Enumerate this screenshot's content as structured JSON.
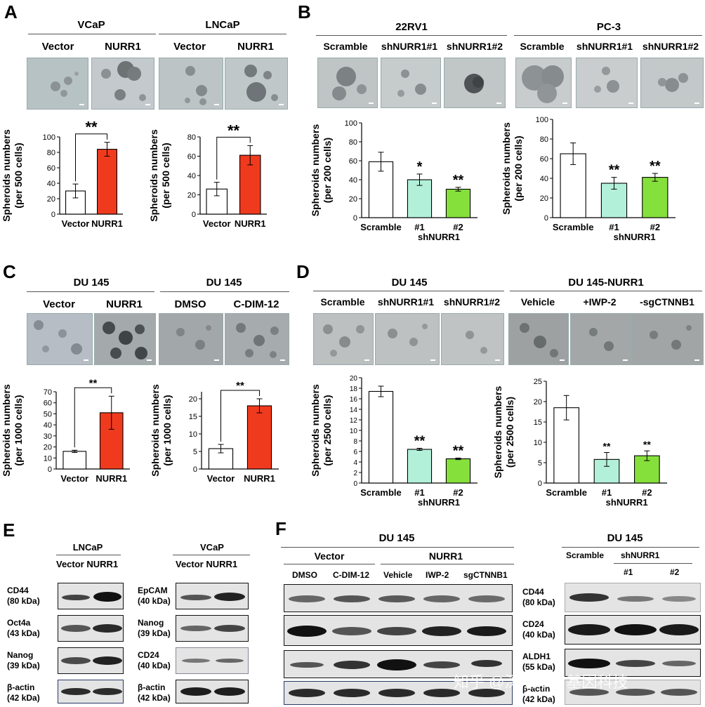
{
  "panels": {
    "A": {
      "letter": "A",
      "cell_lines": [
        "VCaP",
        "LNCaP"
      ],
      "conditions": [
        "Vector",
        "NURR1",
        "Vector",
        "NURR1"
      ]
    },
    "B": {
      "letter": "B",
      "cell_lines": [
        "22RV1",
        "PC-3"
      ],
      "conditions": [
        "Scramble",
        "shNURR1#1",
        "shNURR1#2",
        "Scramble",
        "shNURR1#1",
        "shNURR1#2"
      ]
    },
    "C": {
      "letter": "C",
      "cell_lines": [
        "DU 145",
        "DU 145"
      ],
      "conditions": [
        "Vector",
        "NURR1",
        "DMSO",
        "C-DIM-12"
      ]
    },
    "D": {
      "letter": "D",
      "cell_lines": [
        "DU 145",
        "DU 145-NURR1"
      ],
      "conditions": [
        "Scramble",
        "shNURR1#1",
        "shNURR1#2",
        "Vehicle",
        "+IWP-2",
        "-sgCTNNB1"
      ]
    },
    "E": {
      "letter": "E",
      "cell_lines": [
        "LNCaP",
        "VCaP"
      ],
      "lanes": "Vector NURR1",
      "left_bands": [
        "CD44\n(80 kDa)",
        "Oct4a\n(43 kDa)",
        "Nanog\n(39 kDa)",
        "β-actin\n(42 kDa)"
      ],
      "right_bands": [
        "EpCAM\n(40 kDa)",
        "Nanog\n(39 kDa)",
        "CD24\n(40 kDa)",
        "β-actin\n(42 kDa)"
      ]
    },
    "F": {
      "letter": "F",
      "title_left": "DU 145",
      "group_vector": "Vector",
      "group_nurr1": "NURR1",
      "lanes_left": [
        "DMSO",
        "C-DIM-12",
        "Vehicle",
        "IWP-2",
        "sgCTNNB1"
      ],
      "title_right": "DU 145",
      "lane_scramble": "Scramble",
      "group_sh": "shNURR1",
      "lanes_right_sub": [
        "#1",
        "#2"
      ],
      "bands": [
        "CD44\n(80 kDa)",
        "CD24\n(40 kDa)",
        "ALDH1\n(55 kDa)",
        "β-actin\n(42 kDa)"
      ]
    }
  },
  "watermark": "知乎 @深圳市易基因科技",
  "chart_data": [
    {
      "type": "bar",
      "panel": "A",
      "ylabel": "Spheroids numbers\n(per 500 cells)",
      "categories": [
        "Vector",
        "NURR1"
      ],
      "values": [
        30,
        84
      ],
      "errors": [
        9,
        9
      ],
      "ylim": [
        0,
        100
      ],
      "yticks": [
        0,
        20,
        40,
        60,
        80,
        100
      ],
      "significance": "**",
      "colors": [
        "#ffffff",
        "#f03a1e"
      ]
    },
    {
      "type": "bar",
      "panel": "A",
      "ylabel": "Spheroids numbers\n(per 500 cells)",
      "categories": [
        "Vector",
        "NURR1"
      ],
      "values": [
        26,
        61
      ],
      "errors": [
        7,
        10
      ],
      "ylim": [
        0,
        80
      ],
      "yticks": [
        0,
        20,
        40,
        60,
        80
      ],
      "significance": "**",
      "colors": [
        "#ffffff",
        "#f03a1e"
      ]
    },
    {
      "type": "bar",
      "panel": "B",
      "ylabel": "Spheroids numbers\n(per 200 cells)",
      "categories": [
        "Scramble",
        "#1",
        "#2"
      ],
      "group_label": "shNURR1",
      "values": [
        59,
        40,
        30
      ],
      "errors": [
        10,
        6,
        2
      ],
      "ylim": [
        0,
        100
      ],
      "yticks": [
        0,
        20,
        40,
        60,
        80,
        100
      ],
      "significance": [
        "",
        "*",
        "**"
      ],
      "colors": [
        "#ffffff",
        "#b3f0da",
        "#86e03c"
      ]
    },
    {
      "type": "bar",
      "panel": "B",
      "ylabel": "Spheroids numbers\n(per 200 cells)",
      "categories": [
        "Scramble",
        "#1",
        "#2"
      ],
      "group_label": "shNURR1",
      "values": [
        65,
        35,
        41
      ],
      "errors": [
        11,
        6,
        4
      ],
      "ylim": [
        0,
        100
      ],
      "yticks": [
        0,
        20,
        40,
        60,
        80,
        100
      ],
      "significance": [
        "",
        "**",
        "**"
      ],
      "colors": [
        "#ffffff",
        "#b3f0da",
        "#86e03c"
      ]
    },
    {
      "type": "bar",
      "panel": "C",
      "ylabel": "Spheroids numbers\n(per 1000 cells)",
      "categories": [
        "Vector",
        "NURR1"
      ],
      "values": [
        16,
        51
      ],
      "errors": [
        1,
        15
      ],
      "ylim": [
        0,
        70
      ],
      "yticks": [
        0,
        10,
        20,
        30,
        40,
        50,
        60,
        70
      ],
      "significance": "**",
      "colors": [
        "#ffffff",
        "#f03a1e"
      ]
    },
    {
      "type": "bar",
      "panel": "C",
      "ylabel": "Spheroids numbers\n(per 1000 cells)",
      "categories": [
        "Vector",
        "NURR1"
      ],
      "values": [
        5.8,
        18
      ],
      "errors": [
        1.2,
        2
      ],
      "ylim": [
        0,
        22
      ],
      "yticks": [
        0,
        5,
        10,
        15,
        20
      ],
      "significance": "**",
      "colors": [
        "#ffffff",
        "#f03a1e"
      ]
    },
    {
      "type": "bar",
      "panel": "D",
      "ylabel": "Spheroids numbers\n(per 2500 cells)",
      "categories": [
        "Scramble",
        "#1",
        "#2"
      ],
      "group_label": "shNURR1",
      "values": [
        17.4,
        6.4,
        4.6
      ],
      "errors": [
        1,
        0.2,
        0.15
      ],
      "ylim": [
        0,
        20
      ],
      "yticks": [
        0,
        2,
        4,
        6,
        8,
        10,
        12,
        14,
        16,
        18,
        20
      ],
      "significance": [
        "",
        "**",
        "**"
      ],
      "colors": [
        "#ffffff",
        "#b3f0da",
        "#86e03c"
      ]
    },
    {
      "type": "bar",
      "panel": "D",
      "ylabel": "Spheroids numbers\n(per 2500 cells)",
      "categories": [
        "Scramble",
        "#1",
        "#2"
      ],
      "group_label": "shNURR1",
      "values": [
        18.5,
        5.8,
        6.7
      ],
      "errors": [
        3,
        1.7,
        1.2
      ],
      "ylim": [
        0,
        25
      ],
      "yticks": [
        0,
        5,
        10,
        15,
        20,
        25
      ],
      "significance": [
        "",
        "**",
        "**"
      ],
      "colors": [
        "#ffffff",
        "#b3f0da",
        "#86e03c"
      ]
    }
  ]
}
